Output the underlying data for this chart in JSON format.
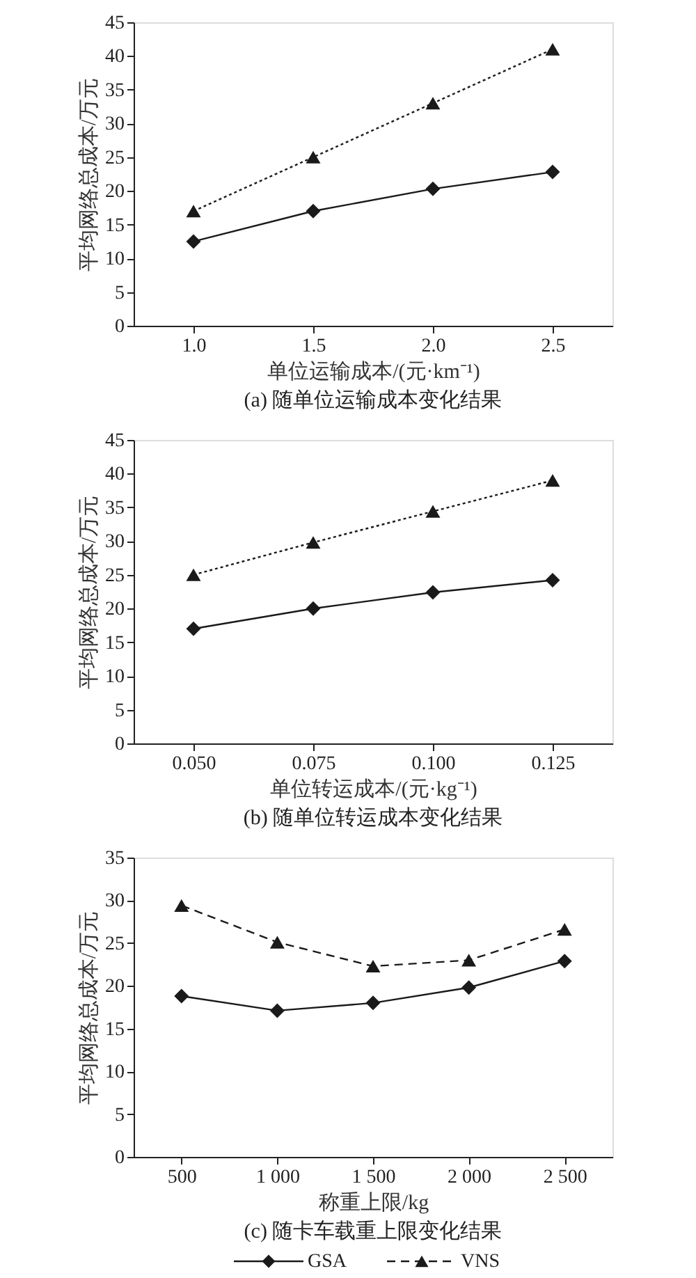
{
  "chart_data": [
    {
      "type": "line",
      "title": "(a) 随单位运输成本变化结果",
      "xlabel": "单位运输成本/(元·km⁻¹)",
      "ylabel": "平均网络总成本/万元",
      "x": [
        1.0,
        1.5,
        2.0,
        2.5
      ],
      "xlim": [
        0.75,
        2.75
      ],
      "xticks": [
        {
          "value": 1,
          "label": "1.0"
        },
        1.5,
        {
          "value": 2,
          "label": "2.0"
        },
        2.5
      ],
      "ylim": [
        0,
        45
      ],
      "yticks": [
        0,
        5,
        10,
        15,
        20,
        25,
        30,
        35,
        40,
        45
      ],
      "series": [
        {
          "color": "#1a1a1a",
          "marker": "diamond",
          "line_style": "solid",
          "values": [
            12.5,
            17,
            20.3,
            22.8
          ]
        },
        {
          "color": "#1a1a1a",
          "marker": "triangle",
          "line_style": "dotted",
          "values": [
            17,
            25,
            33,
            41
          ]
        }
      ]
    },
    {
      "type": "line",
      "title": "(b) 随单位转运成本变化结果",
      "xlabel": "单位转运成本/(元·kg⁻¹)",
      "ylabel": "平均网络总成本/万元",
      "x": [
        0.05,
        0.075,
        0.1,
        0.125
      ],
      "xlim": [
        0.0375,
        0.1375
      ],
      "xticks": [
        {
          "value": 0.05,
          "label": "0.050"
        },
        0.075,
        {
          "value": 0.1,
          "label": "0.100"
        },
        0.125
      ],
      "ylim": [
        0,
        45
      ],
      "yticks": [
        0,
        5,
        10,
        15,
        20,
        25,
        30,
        35,
        40,
        45
      ],
      "series": [
        {
          "color": "#1a1a1a",
          "marker": "diamond",
          "line_style": "solid",
          "values": [
            17,
            20,
            22.4,
            24.2
          ]
        },
        {
          "color": "#1a1a1a",
          "marker": "triangle",
          "line_style": "dotted",
          "values": [
            25,
            29.8,
            34.4,
            39
          ]
        }
      ]
    },
    {
      "type": "line",
      "title": "(c) 随卡车载重上限变化结果",
      "xlabel": "称重上限/kg",
      "ylabel": "平均网络总成本/万元",
      "x": [
        500,
        1000,
        1500,
        2000,
        2500
      ],
      "xlim": [
        250,
        2750
      ],
      "xticks": [
        500,
        {
          "value": 1000,
          "label": "1 000"
        },
        {
          "value": 1500,
          "label": "1 500"
        },
        {
          "value": 2000,
          "label": "2 000"
        },
        {
          "value": 2500,
          "label": "2 500"
        }
      ],
      "ylim": [
        0,
        35
      ],
      "yticks": [
        0,
        5,
        10,
        15,
        20,
        25,
        30,
        35
      ],
      "legend": "bottom",
      "series": [
        {
          "name": "GSA",
          "color": "#1a1a1a",
          "marker": "diamond",
          "line_style": "solid",
          "values": [
            18.8,
            17.1,
            18,
            19.8,
            22.9
          ]
        },
        {
          "name": "VNS",
          "color": "#1a1a1a",
          "marker": "triangle",
          "line_style": "dashed",
          "values": [
            29.4,
            25.1,
            22.3,
            23,
            26.6
          ]
        }
      ]
    }
  ]
}
